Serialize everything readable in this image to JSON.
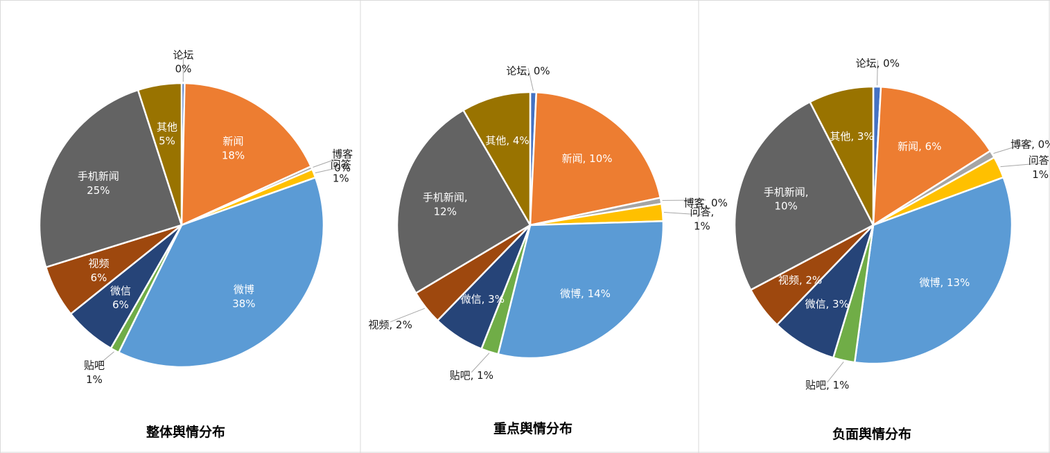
{
  "chart_data": [
    {
      "type": "pie",
      "title": "整体舆情分布",
      "label_style": "stacked",
      "slices": [
        {
          "name": "论坛",
          "percent": 0,
          "label": "0%",
          "color": "#4472C4"
        },
        {
          "name": "新闻",
          "percent": 18,
          "label": "18%",
          "color": "#ED7D31"
        },
        {
          "name": "博客",
          "percent": 0,
          "label": "0%",
          "color": "#A5A5A5"
        },
        {
          "name": "问答",
          "percent": 1,
          "label": "1%",
          "color": "#FFC000"
        },
        {
          "name": "微博",
          "percent": 38,
          "label": "38%",
          "color": "#5B9BD5"
        },
        {
          "name": "贴吧",
          "percent": 1,
          "label": "1%",
          "color": "#70AD47"
        },
        {
          "name": "微信",
          "percent": 6,
          "label": "6%",
          "color": "#264478"
        },
        {
          "name": "视频",
          "percent": 6,
          "label": "6%",
          "color": "#9E480E"
        },
        {
          "name": "手机新闻",
          "percent": 25,
          "label": "25%",
          "color": "#636363"
        },
        {
          "name": "其他",
          "percent": 5,
          "label": "5%",
          "color": "#997300"
        }
      ]
    },
    {
      "type": "pie",
      "title": "重点舆情分布",
      "label_style": "comma",
      "slices": [
        {
          "name": "论坛",
          "percent": 0,
          "label": "0%",
          "color": "#4472C4"
        },
        {
          "name": "新闻",
          "percent": 10,
          "label": "10%",
          "color": "#ED7D31"
        },
        {
          "name": "博客",
          "percent": 0,
          "label": "0%",
          "color": "#A5A5A5"
        },
        {
          "name": "问答",
          "percent": 1,
          "label": "1%",
          "color": "#FFC000"
        },
        {
          "name": "微博",
          "percent": 14,
          "label": "14%",
          "color": "#5B9BD5"
        },
        {
          "name": "贴吧",
          "percent": 1,
          "label": "1%",
          "color": "#70AD47"
        },
        {
          "name": "微信",
          "percent": 3,
          "label": "3%",
          "color": "#264478"
        },
        {
          "name": "视频",
          "percent": 2,
          "label": "2%",
          "color": "#9E480E"
        },
        {
          "name": "手机新闻",
          "percent": 12,
          "label": "12%",
          "color": "#636363"
        },
        {
          "name": "其他",
          "percent": 4,
          "label": "4%",
          "color": "#997300"
        }
      ]
    },
    {
      "type": "pie",
      "title": "负面舆情分布",
      "label_style": "comma",
      "slices": [
        {
          "name": "论坛",
          "percent": 0,
          "label": "0%",
          "color": "#4472C4"
        },
        {
          "name": "新闻",
          "percent": 6,
          "label": "6%",
          "color": "#ED7D31"
        },
        {
          "name": "博客",
          "percent": 0,
          "label": "0%",
          "color": "#A5A5A5"
        },
        {
          "name": "问答",
          "percent": 1,
          "label": "1%",
          "color": "#FFC000"
        },
        {
          "name": "微博",
          "percent": 13,
          "label": "13%",
          "color": "#5B9BD5"
        },
        {
          "name": "贴吧",
          "percent": 1,
          "label": "1%",
          "color": "#70AD47"
        },
        {
          "name": "微信",
          "percent": 3,
          "label": "3%",
          "color": "#264478"
        },
        {
          "name": "视频",
          "percent": 2,
          "label": "2%",
          "color": "#9E480E"
        },
        {
          "name": "手机新闻",
          "percent": 10,
          "label": "10%",
          "color": "#636363"
        },
        {
          "name": "其他",
          "percent": 3,
          "label": "3%",
          "color": "#997300"
        }
      ]
    }
  ]
}
